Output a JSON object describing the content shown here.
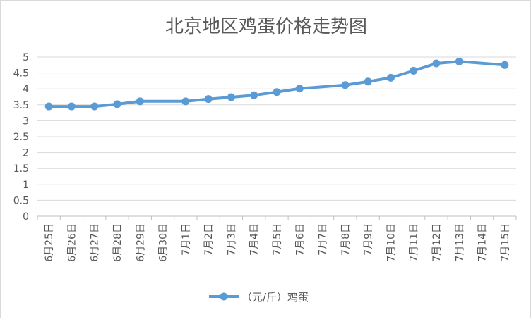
{
  "chart_data": {
    "type": "line",
    "title": "北京地区鸡蛋价格走势图",
    "categories": [
      "6月25日",
      "6月26日",
      "6月27日",
      "6月28日",
      "6月29日",
      "6月30日",
      "7月1日",
      "7月2日",
      "7月3日",
      "7月4日",
      "7月5日",
      "7月6日",
      "7月7日",
      "7月8日",
      "7月9日",
      "7月10日",
      "7月11日",
      "7月12日",
      "7月13日",
      "7月14日",
      "7月15日"
    ],
    "series": [
      {
        "name": "（元/斤）鸡蛋",
        "color": "#5b9bd5",
        "values": [
          3.45,
          3.45,
          3.45,
          3.52,
          3.61,
          null,
          3.61,
          3.68,
          3.74,
          3.8,
          3.9,
          4.01,
          null,
          4.12,
          4.23,
          4.35,
          4.57,
          4.8,
          4.86,
          null,
          4.75
        ]
      }
    ],
    "yticks": [
      "0",
      "0.5",
      "1",
      "1.5",
      "2",
      "2.5",
      "3",
      "3.5",
      "4",
      "4.5",
      "5"
    ],
    "ylim": [
      0,
      5
    ],
    "grid": true,
    "legend_position": "bottom"
  }
}
